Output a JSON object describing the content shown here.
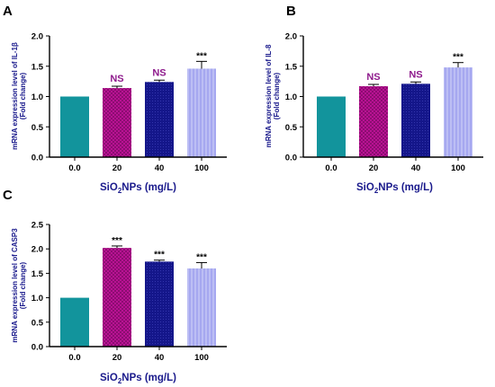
{
  "colors": {
    "axis": "#000000",
    "axis_title": "#1a1a8c",
    "sig_ns": "#8e1a8c",
    "sig_star": "#000000",
    "bar_0": "#12949c",
    "bar_20": "#c2139a",
    "bar_20_pattern": "#7a0a63",
    "bar_40": "#14168a",
    "bar_40_pattern": "#3b3db8",
    "bar_100": "#a6a8f0",
    "bar_100_pattern": "#d8d9fb",
    "error_bar": "#000000"
  },
  "chart_data": [
    {
      "panel": "A",
      "type": "bar",
      "categories": [
        "0.0",
        "20",
        "40",
        "100"
      ],
      "values": [
        1.0,
        1.14,
        1.24,
        1.46
      ],
      "errors": [
        0.0,
        0.03,
        0.03,
        0.12
      ],
      "significance": [
        "",
        "NS",
        "NS",
        "***"
      ],
      "ylabel_line1": "mRNA expression level of IL-1β",
      "ylabel_line2": "(Fold change)",
      "xlabel_main": "SiO",
      "xlabel_sub": "2",
      "xlabel_rest": "NPs (mg/L)",
      "ylim": [
        0,
        2.0
      ],
      "yticks": [
        "0.0",
        "0.5",
        "1.0",
        "1.5",
        "2.0"
      ],
      "ytick_values": [
        0,
        0.5,
        1.0,
        1.5,
        2.0
      ],
      "legend": "none",
      "grid": false
    },
    {
      "panel": "B",
      "type": "bar",
      "categories": [
        "0.0",
        "20",
        "40",
        "100"
      ],
      "values": [
        1.0,
        1.17,
        1.21,
        1.48
      ],
      "errors": [
        0.0,
        0.03,
        0.03,
        0.08
      ],
      "significance": [
        "",
        "NS",
        "NS",
        "***"
      ],
      "ylabel_line1": "mRNA expression level of IL-8",
      "ylabel_line2": "(Fold change)",
      "xlabel_main": "SiO",
      "xlabel_sub": "2",
      "xlabel_rest": "NPs (mg/L)",
      "ylim": [
        0,
        2.0
      ],
      "yticks": [
        "0.0",
        "0.5",
        "1.0",
        "1.5",
        "2.0"
      ],
      "ytick_values": [
        0,
        0.5,
        1.0,
        1.5,
        2.0
      ],
      "legend": "none",
      "grid": false
    },
    {
      "panel": "C",
      "type": "bar",
      "categories": [
        "0.0",
        "20",
        "40",
        "100"
      ],
      "values": [
        1.0,
        2.02,
        1.74,
        1.6
      ],
      "errors": [
        0.0,
        0.04,
        0.03,
        0.12
      ],
      "significance": [
        "",
        "***",
        "***",
        "***"
      ],
      "ylabel_line1": "mRNA expression level of CASP3",
      "ylabel_line2": "(Fold change)",
      "xlabel_main": "SiO",
      "xlabel_sub": "2",
      "xlabel_rest": "NPs (mg/L)",
      "ylim": [
        0,
        2.5
      ],
      "yticks": [
        "0.0",
        "0.5",
        "1.0",
        "1.5",
        "2.0",
        "2.5"
      ],
      "ytick_values": [
        0,
        0.5,
        1.0,
        1.5,
        2.0,
        2.5
      ],
      "legend": "none",
      "grid": false
    }
  ]
}
